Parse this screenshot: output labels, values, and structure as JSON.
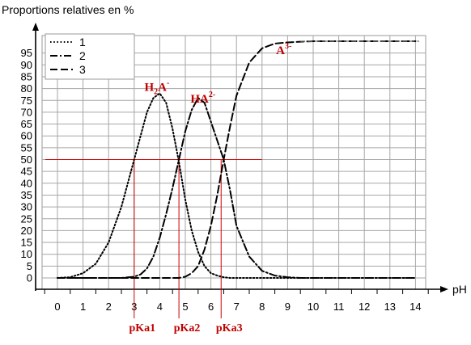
{
  "chart_data": {
    "type": "line",
    "title": "",
    "ylabel": "Proportions relatives en %",
    "xlabel": "pH",
    "xlim": [
      0,
      14
    ],
    "ylim": [
      0,
      100
    ],
    "x_ticks": [
      0,
      1,
      2,
      3,
      4,
      5,
      6,
      7,
      8,
      9,
      10,
      11,
      12,
      13,
      14
    ],
    "y_ticks": [
      0,
      5,
      10,
      15,
      20,
      25,
      30,
      35,
      40,
      45,
      50,
      55,
      60,
      65,
      70,
      75,
      80,
      85,
      90,
      95
    ],
    "grid": true,
    "legend_position": "top-left",
    "x": [
      0,
      0.5,
      1,
      1.5,
      2,
      2.5,
      3,
      3.25,
      3.5,
      3.75,
      4,
      4.25,
      4.5,
      4.75,
      5,
      5.25,
      5.5,
      5.75,
      6,
      6.25,
      6.5,
      6.75,
      7,
      7.5,
      8,
      8.5,
      9,
      9.5,
      10,
      11,
      12,
      13,
      14
    ],
    "series": [
      {
        "name": "1",
        "style": "dotted",
        "values": [
          0,
          0.3,
          2,
          6,
          15,
          30,
          50,
          60,
          70,
          76,
          78,
          74,
          63,
          49,
          33,
          20,
          11,
          5,
          2,
          1,
          0.3,
          0,
          0,
          0,
          0,
          0,
          0,
          0,
          0,
          0,
          0,
          0,
          0
        ]
      },
      {
        "name": "2",
        "style": "dash-dot",
        "values": [
          0,
          0,
          0,
          0,
          0,
          0,
          0.5,
          1.5,
          4,
          9,
          17,
          27,
          38,
          50,
          62,
          71,
          76,
          74,
          66,
          58,
          50,
          37,
          22,
          9,
          3,
          1,
          0.3,
          0,
          0,
          0,
          0,
          0,
          0
        ]
      },
      {
        "name": "3",
        "style": "dashed",
        "values": [
          0,
          0,
          0,
          0,
          0,
          0,
          0,
          0,
          0,
          0,
          0,
          0,
          0,
          0,
          0.5,
          2,
          5,
          12,
          22,
          35,
          50,
          64,
          77,
          91,
          97,
          99,
          99.5,
          99.8,
          100,
          100,
          100,
          100,
          100
        ]
      }
    ],
    "hlines": [
      {
        "y": 50,
        "x_end": 8,
        "color": "#cc0000"
      }
    ],
    "vlines": [
      {
        "x": 3.0,
        "label": "pKa1",
        "color": "#cc0000"
      },
      {
        "x": 4.75,
        "label": "pKa2",
        "color": "#cc0000"
      },
      {
        "x": 6.4,
        "label": "pKa3",
        "color": "#cc0000"
      }
    ],
    "annotations": [
      {
        "text": "H",
        "sub": "2",
        "rest": "A",
        "sup": "-",
        "x": 3.4,
        "y": 79
      },
      {
        "text": "HA",
        "sub": "",
        "rest": "",
        "sup": "2-",
        "x": 5.2,
        "y": 74
      },
      {
        "text": "A",
        "sub": "",
        "rest": "",
        "sup": "3-",
        "x": 8.55,
        "y": 94.5
      }
    ]
  }
}
